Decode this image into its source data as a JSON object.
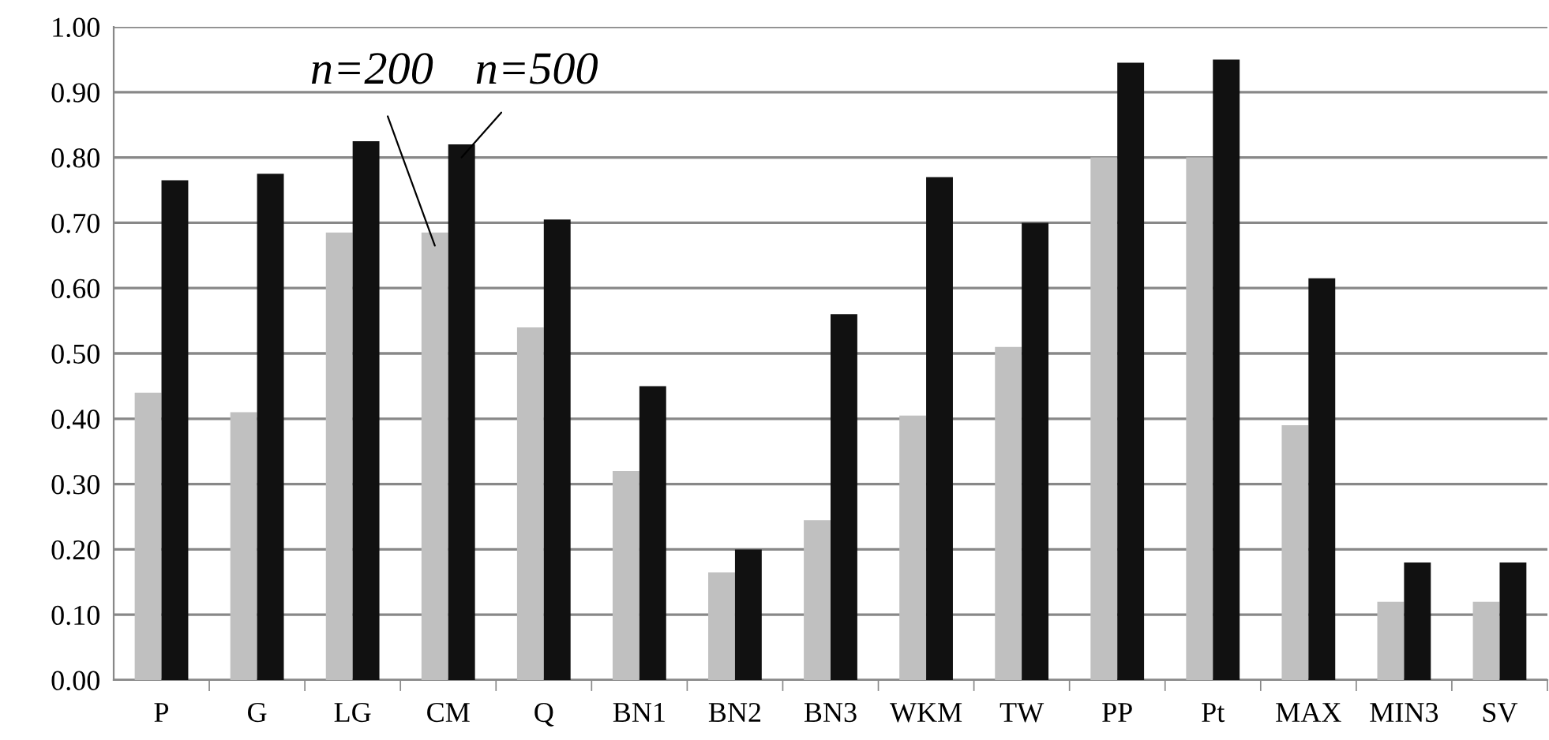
{
  "chart_data": {
    "type": "bar",
    "categories": [
      "P",
      "G",
      "LG",
      "CM",
      "Q",
      "BN1",
      "BN2",
      "BN3",
      "WKM",
      "TW",
      "PP",
      "Pt",
      "MAX",
      "MIN3",
      "SV"
    ],
    "series": [
      {
        "name": "n=200",
        "color": "#c0c0c0",
        "values": [
          0.44,
          0.41,
          0.685,
          0.685,
          0.54,
          0.32,
          0.165,
          0.245,
          0.405,
          0.51,
          0.8,
          0.8,
          0.39,
          0.12,
          0.12
        ]
      },
      {
        "name": "n=500",
        "color": "#111111",
        "values": [
          0.765,
          0.775,
          0.825,
          0.82,
          0.705,
          0.45,
          0.2,
          0.56,
          0.77,
          0.7,
          0.945,
          0.95,
          0.615,
          0.18,
          0.18
        ]
      }
    ],
    "ylim": [
      0,
      1
    ],
    "yticks": [
      {
        "value": 0,
        "label": "0.00"
      },
      {
        "value": 0.1,
        "label": "0.10"
      },
      {
        "value": 0.2,
        "label": "0.20"
      },
      {
        "value": 0.3,
        "label": "0.30"
      },
      {
        "value": 0.4,
        "label": "0.40"
      },
      {
        "value": 0.5,
        "label": "0.50"
      },
      {
        "value": 0.6,
        "label": "0.60"
      },
      {
        "value": 0.7,
        "label": "0.70"
      },
      {
        "value": 0.8,
        "label": "0.80"
      },
      {
        "value": 0.9,
        "label": "0.90"
      },
      {
        "value": 1,
        "label": "1.00"
      }
    ],
    "grid": "y",
    "legend": false
  }
}
